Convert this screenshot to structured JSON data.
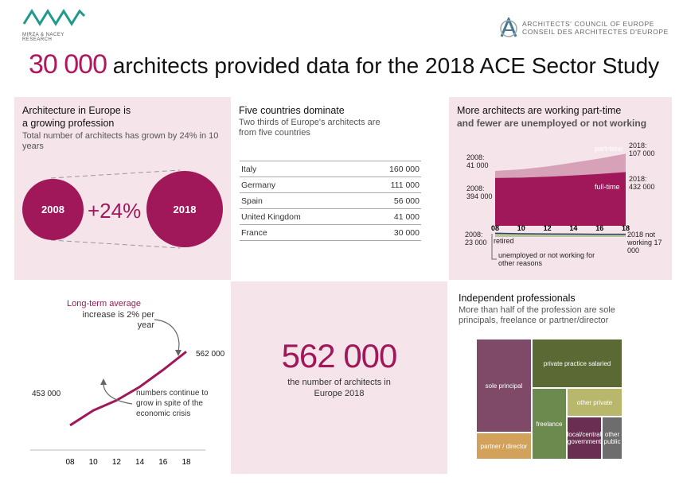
{
  "header": {
    "logo_left_text": "MIRZA & NACEY RESEARCH",
    "logo_right_line1": "ARCHITECTS' COUNCIL OF EUROPE",
    "logo_right_line2": "CONSEIL DES ARCHITECTES D'EUROPE",
    "headline_number": "30 000",
    "headline_text": "architects provided data for the 2018 ACE Sector Study"
  },
  "growth": {
    "title_line1": "Architecture in Europe is",
    "title_line2": "a growing profession",
    "subtitle": "Total number of architects has grown by 24% in 10 years",
    "left_circle": "2008",
    "right_circle": "2018",
    "change": "+24%"
  },
  "countries": {
    "title": "Five countries dominate",
    "subtitle": "Two thirds of Europe's architects are from five countries",
    "rows": [
      {
        "country": "Italy",
        "value": "160 000"
      },
      {
        "country": "Germany",
        "value": "111 000"
      },
      {
        "country": "Spain",
        "value": "56 000"
      },
      {
        "country": "United Kingdom",
        "value": "41 000"
      },
      {
        "country": "France",
        "value": "30 000"
      }
    ]
  },
  "parttime": {
    "title": "More architects are working part-time",
    "subtitle": "and fewer are unemployed or not working",
    "label_parttime": "part-time",
    "label_fulltime": "full-time",
    "label_retired": "retired",
    "label_unemployed": "unemployed or not working for other reasons",
    "ann_pt_2008": "2008: 41 000",
    "ann_pt_2018": "2018: 107 000",
    "ann_ft_2008": "2008: 394 000",
    "ann_ft_2018": "2018: 432 000",
    "ann_un_2008": "2008: 23 000",
    "ann_un_2018": "2018 not working 17 000"
  },
  "trend": {
    "annotation_title": "Long-term average",
    "annotation_body": "increase is 2% per year",
    "start_label": "453 000",
    "end_label": "562 000",
    "note": "numbers continue to grow in spite of the economic crisis"
  },
  "total": {
    "number": "562 000",
    "caption": "the number of architects in Europe 2018"
  },
  "independent": {
    "title": "Independent professionals",
    "subtitle": "More than half of the profession are sole principals,  freelance or partner/director"
  },
  "chart_data": [
    {
      "type": "area",
      "title": "More architects are working part-time",
      "x": [
        "08",
        "10",
        "12",
        "14",
        "16",
        "18"
      ],
      "series": [
        {
          "name": "full-time",
          "values": [
            394000,
            396000,
            402000,
            410000,
            420000,
            432000
          ]
        },
        {
          "name": "part-time",
          "values": [
            41000,
            48000,
            60000,
            75000,
            90000,
            107000
          ]
        },
        {
          "name": "unemployed or not working for other reasons",
          "values": [
            23000,
            20000,
            19000,
            18000,
            17000,
            17000
          ]
        }
      ]
    },
    {
      "type": "line",
      "x": [
        "08",
        "10",
        "12",
        "14",
        "16",
        "18"
      ],
      "series": [
        {
          "values": [
            453000,
            475000,
            490000,
            510000,
            535000,
            562000
          ]
        }
      ],
      "ylim": [
        400000,
        600000
      ]
    },
    {
      "type": "treemap",
      "title": "Independent professionals",
      "categories": [
        "sole principal",
        "partner / director",
        "private practice salaried",
        "freelance",
        "other private",
        "local/central government",
        "other public"
      ],
      "values": [
        27,
        8,
        22,
        13,
        11,
        9,
        6
      ],
      "colors": [
        "#7e4a67",
        "#d2a25a",
        "#5b6a34",
        "#6c8a4d",
        "#b9b76c",
        "#6a2e52",
        "#6d6d6d"
      ]
    }
  ]
}
